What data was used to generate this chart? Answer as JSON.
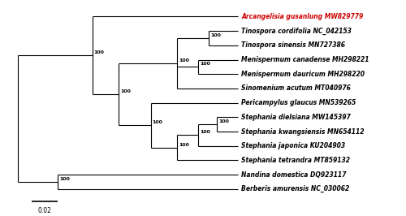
{
  "taxa": [
    "Arcangelisia gusanlung MW829779",
    "Tinospora cordifolia NC_042153",
    "Tinospora sinensis MN727386",
    "Menispermum canadense MH298221",
    "Menispermum dauricum MH298220",
    "Sinomenium acutum MT040976",
    "Pericampylus glaucus MN539265",
    "Stephania dielsiana MW145397",
    "Stephania kwangsiensis MN654112",
    "Stephania japonica KU204903",
    "Stephania tetrandra MT859132",
    "Nandina domestica DQ923117",
    "Berberis amurensis NC_030062"
  ],
  "taxa_colors": [
    "#cc0000",
    "#000000",
    "#000000",
    "#000000",
    "#000000",
    "#000000",
    "#000000",
    "#000000",
    "#000000",
    "#000000",
    "#000000",
    "#000000",
    "#000000"
  ],
  "y_positions": [
    13,
    12,
    11,
    10,
    9,
    8,
    7,
    6,
    5,
    4,
    3,
    2,
    1
  ],
  "scale_bar_label": "0.02",
  "bg_color": "#ffffff",
  "line_color": "#000000",
  "font_size": 5.5,
  "bootstrap_font_size": 4.5,
  "lw": 0.8
}
